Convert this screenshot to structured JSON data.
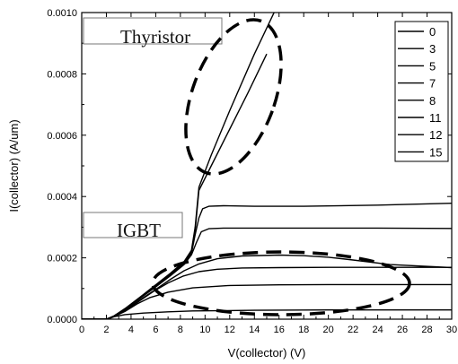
{
  "chart_data": {
    "type": "line",
    "xlabel": "V(collector) (V)",
    "ylabel": "I(collector) (A/um)",
    "xlim": [
      0,
      30
    ],
    "ylim": [
      0,
      0.001
    ],
    "x_ticks": [
      0,
      2,
      4,
      6,
      8,
      10,
      12,
      14,
      16,
      18,
      20,
      22,
      24,
      26,
      28,
      30
    ],
    "y_ticks": [
      "0.0000",
      "0.0002",
      "0.0004",
      "0.0006",
      "0.0008",
      "0.0010"
    ],
    "legend_position": "top-right",
    "legend": [
      "0",
      "3",
      "5",
      "7",
      "8",
      "11",
      "12",
      "15"
    ],
    "annotations": [
      "Thyristor",
      "IGBT"
    ],
    "series": [
      {
        "name": "0",
        "x": [
          0,
          2.0,
          2.3,
          2.6,
          3.5,
          5.0,
          7.0,
          9.0,
          14.0,
          20.0,
          25.0,
          30.0
        ],
        "y": [
          0,
          0,
          3e-06,
          8e-06,
          1.5e-05,
          2e-05,
          2.4e-05,
          2.7e-05,
          2.9e-05,
          3e-05,
          3e-05,
          3e-05
        ]
      },
      {
        "name": "3",
        "x": [
          0,
          2.0,
          2.6,
          3.5,
          4.5,
          5.5,
          7.0,
          9.0,
          12.0,
          16.0,
          20.0,
          30.0
        ],
        "y": [
          0,
          0,
          8e-06,
          2.5e-05,
          5e-05,
          7e-05,
          8.8e-05,
          0.000102,
          0.00011,
          0.000112,
          0.000113,
          0.000113
        ]
      },
      {
        "name": "5",
        "x": [
          0,
          2.0,
          2.6,
          3.6,
          4.7,
          5.8,
          7.0,
          8.2,
          9.5,
          11.0,
          13.0,
          16.0,
          20.0,
          30.0
        ],
        "y": [
          0,
          0,
          1e-05,
          3e-05,
          6e-05,
          9e-05,
          0.000118,
          0.00014,
          0.000155,
          0.000163,
          0.000167,
          0.000168,
          0.000169,
          0.000169
        ]
      },
      {
        "name": "7",
        "x": [
          0,
          2.0,
          2.6,
          3.6,
          4.8,
          6.0,
          7.2,
          8.3,
          9.5,
          11.0,
          13.0,
          16.0,
          18.0,
          20.0,
          22.0,
          25.0,
          30.0
        ],
        "y": [
          0,
          0,
          1e-05,
          3.2e-05,
          6.5e-05,
          9.7e-05,
          0.00013,
          0.000158,
          0.00018,
          0.000197,
          0.000206,
          0.000209,
          0.000207,
          0.000202,
          0.000193,
          0.000178,
          0.000168
        ]
      },
      {
        "name": "8",
        "x": [
          0,
          2.0,
          2.6,
          3.6,
          4.8,
          6.0,
          7.2,
          8.3,
          8.9,
          9.3,
          9.7,
          10.3,
          11.5,
          14.0,
          18.0,
          24.0,
          30.0
        ],
        "y": [
          0,
          0,
          1e-05,
          3.5e-05,
          7e-05,
          0.000105,
          0.000142,
          0.000178,
          0.00021,
          0.00025,
          0.000285,
          0.000295,
          0.000297,
          0.000297,
          0.000297,
          0.000297,
          0.000296
        ]
      },
      {
        "name": "11",
        "x": [
          0,
          2.0,
          2.6,
          3.6,
          4.8,
          6.0,
          7.2,
          8.3,
          8.9,
          9.2,
          9.5,
          9.8,
          10.3,
          11.5,
          14.0,
          18.0,
          24.0,
          30.0
        ],
        "y": [
          0,
          0,
          1e-05,
          3.6e-05,
          7.2e-05,
          0.000108,
          0.000145,
          0.000182,
          0.000215,
          0.000275,
          0.00033,
          0.00036,
          0.000368,
          0.00037,
          0.000368,
          0.000368,
          0.000372,
          0.000378
        ]
      },
      {
        "name": "12",
        "x": [
          0,
          2.0,
          2.6,
          3.6,
          4.8,
          6.0,
          7.2,
          8.3,
          8.9,
          9.2,
          9.5,
          10.5,
          12.0,
          13.5,
          15.0
        ],
        "y": [
          0,
          0,
          1e-05,
          3.6e-05,
          7.3e-05,
          0.00011,
          0.000147,
          0.000185,
          0.00022,
          0.00029,
          0.00042,
          0.0005,
          0.00062,
          0.00074,
          0.000865
        ]
      },
      {
        "name": "15",
        "x": [
          0,
          2.0,
          2.6,
          3.6,
          4.8,
          6.0,
          7.2,
          8.3,
          8.9,
          9.2,
          9.5,
          10.5,
          12.0,
          14.0,
          15.6
        ],
        "y": [
          0,
          0,
          1e-05,
          3.7e-05,
          7.4e-05,
          0.000112,
          0.00015,
          0.000188,
          0.000225,
          0.0003,
          0.00043,
          0.000535,
          0.00068,
          0.000865,
          0.001
        ]
      }
    ]
  }
}
